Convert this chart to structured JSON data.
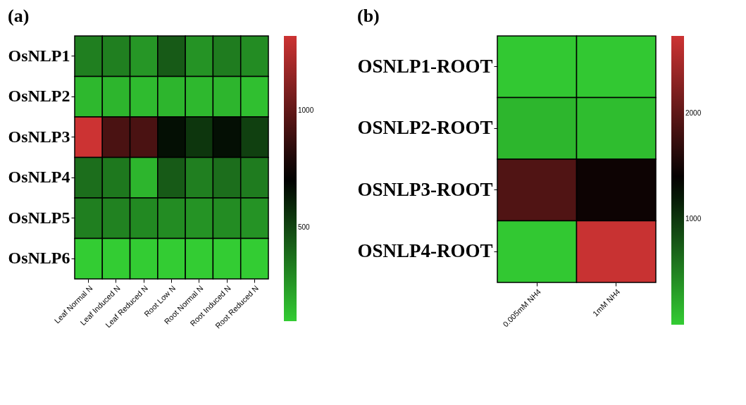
{
  "chart_data": [
    {
      "type": "heatmap",
      "title": "(a)",
      "categories": [
        "Leaf Normal N",
        "Leaf Induced N",
        "Leaf Reduced N",
        "Root Low N",
        "Root Normal N",
        "Root Induced N",
        "Root Reduced N"
      ],
      "y_categories": [
        "OsNLP1",
        "OsNLP2",
        "OsNLP3",
        "OsNLP4",
        "OsNLP5",
        "OsNLP6"
      ],
      "cells": [
        [
          330,
          330,
          260,
          440,
          270,
          340,
          290
        ],
        [
          160,
          170,
          150,
          170,
          160,
          170,
          140
        ],
        [
          1320,
          930,
          930,
          665,
          550,
          665,
          520
        ],
        [
          380,
          350,
          170,
          440,
          330,
          380,
          340
        ],
        [
          330,
          320,
          300,
          290,
          270,
          290,
          270
        ],
        [
          100,
          100,
          100,
          100,
          100,
          100,
          100
        ]
      ],
      "clim": [
        100,
        1320
      ],
      "cticks": [
        500,
        1000
      ]
    },
    {
      "type": "heatmap",
      "title": "(b)",
      "categories": [
        "0.005mM NH4",
        "1mM NH4"
      ],
      "y_categories": [
        "OSNLP1-ROOT",
        "OSNLP2-ROOT",
        "OSNLP3-ROOT",
        "OSNLP4-ROOT"
      ],
      "cells": [
        [
          30,
          30
        ],
        [
          150,
          100
        ],
        [
          1900,
          1450
        ],
        [
          30,
          2700
        ]
      ],
      "clim": [
        0,
        2730
      ],
      "cticks": [
        1000,
        2000
      ]
    }
  ]
}
